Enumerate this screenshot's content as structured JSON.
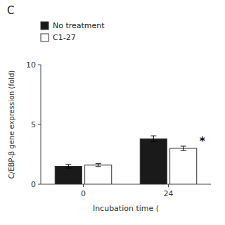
{
  "chart_data": {
    "type": "bar",
    "title": "C",
    "xlabel": "Incubation time (",
    "ylabel": "C/EBP-β gene expression (fold)",
    "categories": [
      "0",
      "24"
    ],
    "series": [
      {
        "name": "No treatment",
        "color": "#1a1a1a",
        "values": [
          1.5,
          3.8
        ],
        "errors": [
          0.15,
          0.25
        ]
      },
      {
        "name": "C1-27",
        "color": "#ffffff",
        "values": [
          1.6,
          3.0
        ],
        "errors": [
          0.12,
          0.18
        ]
      }
    ],
    "annotations": [
      {
        "text": "*",
        "series": "C1-27",
        "category": "24"
      }
    ],
    "ylim": [
      0,
      10
    ],
    "yticks": [
      0,
      5,
      10
    ],
    "grid": false,
    "legend": "upper left"
  }
}
